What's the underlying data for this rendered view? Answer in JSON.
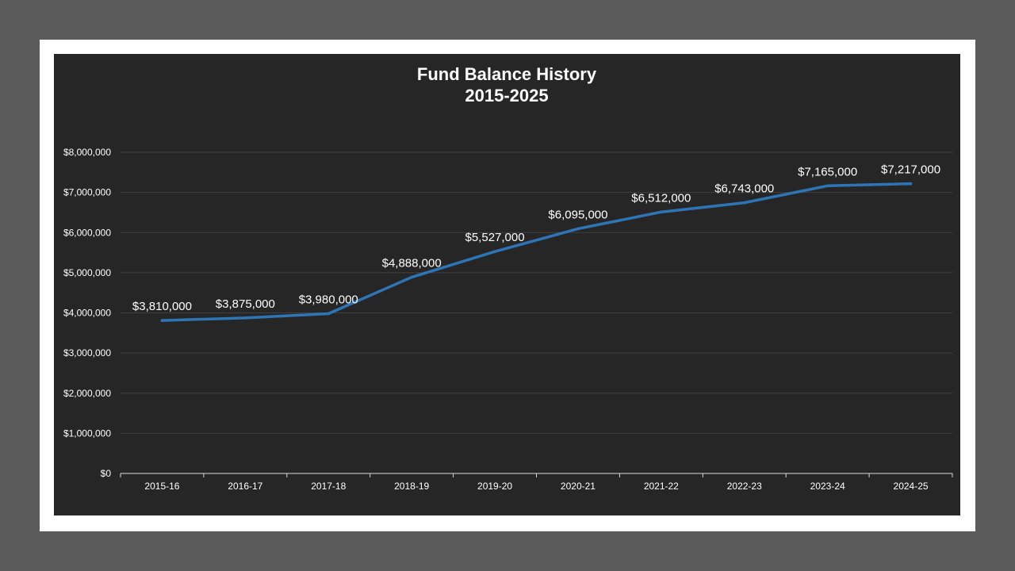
{
  "chart_data": {
    "type": "line",
    "title": "Fund Balance History",
    "subtitle": "2015-2025",
    "categories": [
      "2015-16",
      "2016-17",
      "2017-18",
      "2018-19",
      "2019-20",
      "2020-21",
      "2021-22",
      "2022-23",
      "2023-24",
      "2024-25"
    ],
    "series": [
      {
        "values": [
          3810000,
          3875000,
          3980000,
          4888000,
          5527000,
          6095000,
          6512000,
          6743000,
          7165000,
          7217000
        ],
        "data_labels": [
          "$3,810,000",
          "$3,875,000",
          "$3,980,000",
          "$4,888,000",
          "$5,527,000",
          "$6,095,000",
          "$6,512,000",
          "$6,743,000",
          "$7,165,000",
          "$7,217,000"
        ],
        "color": "#2e75b6"
      }
    ],
    "ylim": [
      0,
      8000000
    ],
    "y_ticks": [
      0,
      1000000,
      2000000,
      3000000,
      4000000,
      5000000,
      6000000,
      7000000,
      8000000
    ],
    "y_tick_labels": [
      "$0",
      "$1,000,000",
      "$2,000,000",
      "$3,000,000",
      "$4,000,000",
      "$5,000,000",
      "$6,000,000",
      "$7,000,000",
      "$8,000,000"
    ],
    "xlabel": "",
    "ylabel": "",
    "grid": true,
    "legend": "none"
  },
  "colors": {
    "page_background": "#5b5b5b",
    "frame": "#ffffff",
    "chart_background": "#262626",
    "gridline": "#404040",
    "axis": "#d9d9d9",
    "text": "#ffffff"
  }
}
